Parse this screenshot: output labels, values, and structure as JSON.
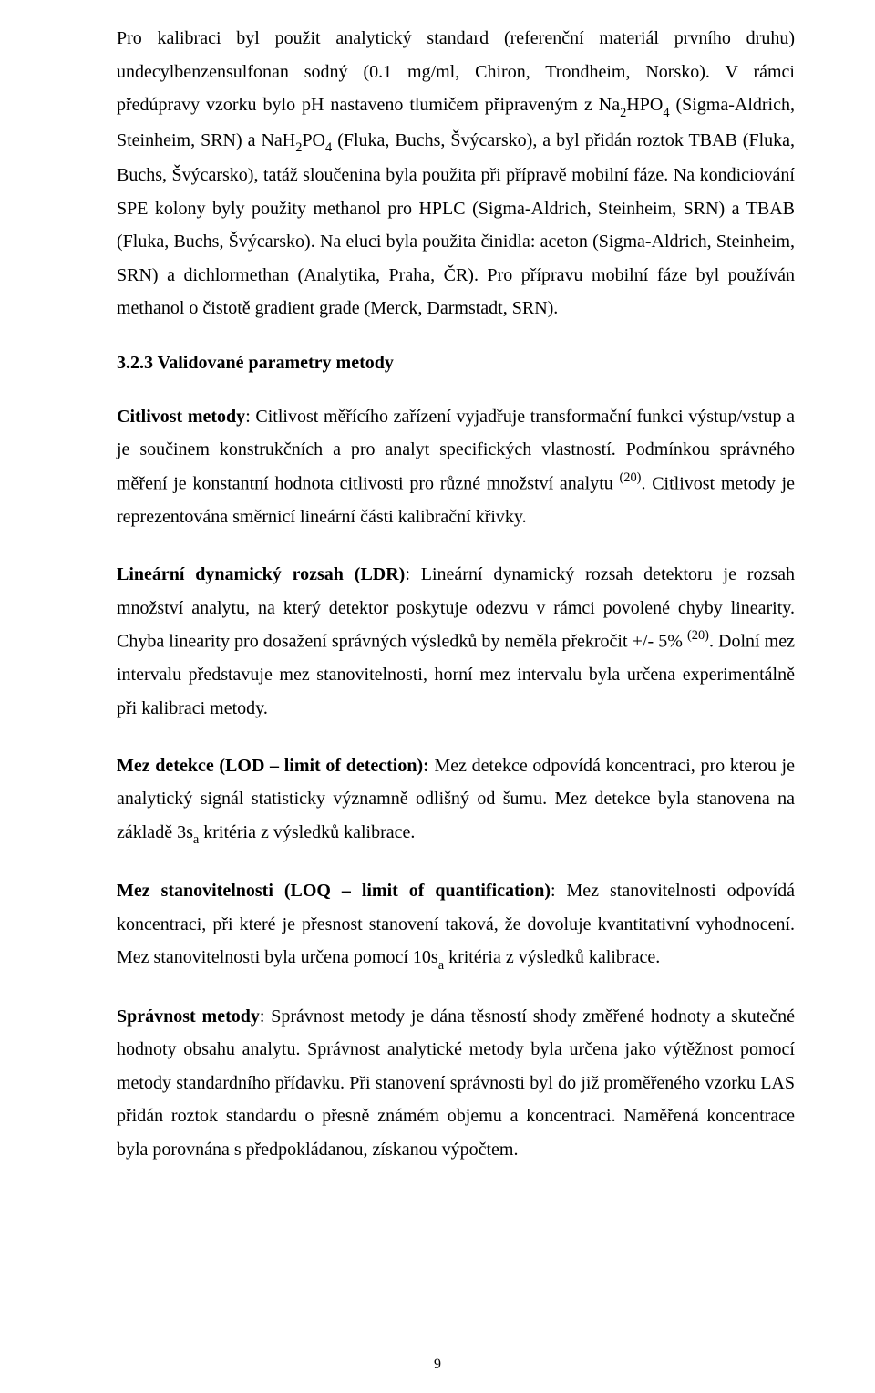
{
  "p1_part1": "Pro kalibraci byl použit analytický standard (referenční materiál prvního druhu) undecylbenzensulfonan sodný (0.1 mg/ml, Chiron, Trondheim, Norsko). V rámci předúpravy vzorku bylo pH nastaveno tlumičem připraveným z Na",
  "p1_sub1": "2",
  "p1_part2": "HPO",
  "p1_sub2": "4",
  "p1_part3": " (Sigma-Aldrich, Steinheim, SRN) a NaH",
  "p1_sub3": "2",
  "p1_part4": "PO",
  "p1_sub4": "4",
  "p1_part5": " (Fluka, Buchs, Švýcarsko), a byl přidán roztok TBAB (Fluka, Buchs, Švýcarsko), tatáž sloučenina byla použita při přípravě mobilní fáze. Na kondiciování SPE kolony byly použity methanol pro HPLC (Sigma-Aldrich, Steinheim, SRN) a  TBAB (Fluka, Buchs, Švýcarsko). Na eluci byla použita činidla: aceton (Sigma-Aldrich, Steinheim, SRN) a dichlormethan (Analytika, Praha, ČR). Pro přípravu mobilní fáze byl používán methanol o čistotě gradient grade (Merck, Darmstadt, SRN).",
  "heading": "3.2.3 Validované parametry metody",
  "p2_term": "Citlivost metody",
  "p2_body_a": ": Citlivost měřícího zařízení vyjadřuje transformační funkci výstup/vstup a je součinem konstrukčních a pro analyt specifických vlastností. Podmínkou správného měření je konstantní hodnota citlivosti pro různé množství analytu ",
  "p2_sup": "(20)",
  "p2_body_b": ". Citlivost metody je reprezentována směrnicí lineární části kalibrační křivky.",
  "p3_term": "Lineární dynamický rozsah (LDR)",
  "p3_body_a": ": Lineární dynamický rozsah detektoru je rozsah množství analytu, na který detektor poskytuje odezvu v rámci povolené chyby linearity. Chyba linearity pro dosažení správných výsledků by neměla překročit +/- 5% ",
  "p3_sup": "(20)",
  "p3_body_b": ". Dolní mez intervalu představuje mez stanovitelnosti, horní mez intervalu byla určena experimentálně při kalibraci metody.",
  "p4_term": "Mez detekce (LOD – limit of detection):",
  "p4_body_a": " Mez detekce odpovídá koncentraci, pro kterou je analytický signál statisticky významně odlišný od šumu. Mez detekce byla stanovena na základě 3s",
  "p4_sub": "a",
  "p4_body_b": " kritéria z výsledků kalibrace.",
  "p5_term": "Mez stanovitelnosti (LOQ – limit of quantification)",
  "p5_body_a": ": Mez stanovitelnosti odpovídá koncentraci, při které je přesnost stanovení taková, že dovoluje kvantitativní vyhodnocení. Mez stanovitelnosti byla určena pomocí 10s",
  "p5_sub": "a",
  "p5_body_b": " kritéria z výsledků kalibrace.",
  "p6_term": "Správnost metody",
  "p6_body": ": Správnost metody je dána těsností shody změřené hodnoty a skutečné hodnoty obsahu analytu. Správnost analytické metody byla určena jako výtěžnost pomocí metody standardního přídavku. Při stanovení správnosti byl do již proměřeného vzorku LAS přidán roztok standardu o přesně známém objemu a koncentraci. Naměřená koncentrace byla porovnána s předpokládanou, získanou výpočtem.",
  "page_number": "9"
}
